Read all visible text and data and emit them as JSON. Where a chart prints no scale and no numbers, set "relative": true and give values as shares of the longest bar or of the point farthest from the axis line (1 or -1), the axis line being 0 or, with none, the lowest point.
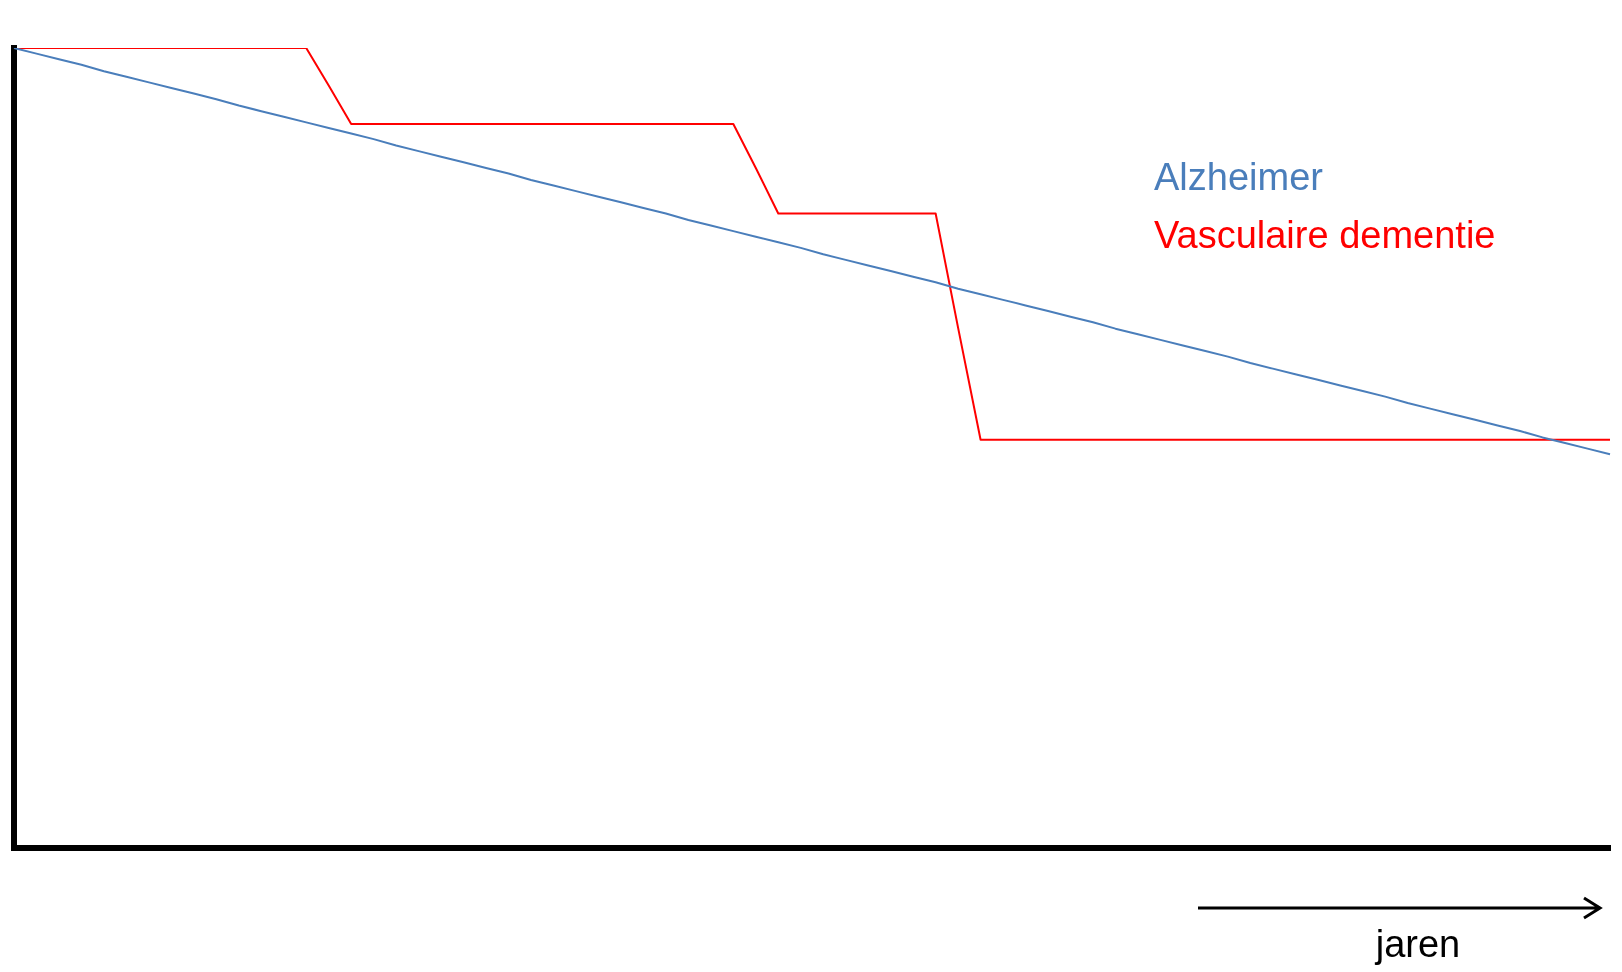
{
  "chart_data": {
    "type": "line",
    "relative": true,
    "xlabel": "jaren",
    "grid": false,
    "marker": "none",
    "categories": [
      null,
      null,
      null,
      null,
      null,
      null,
      null,
      null,
      null,
      null,
      null,
      null,
      null,
      null,
      null,
      null,
      null,
      null,
      null,
      null,
      null,
      null,
      null,
      null,
      null,
      null,
      null,
      null,
      null,
      null,
      null,
      null,
      null,
      null,
      null,
      null,
      null,
      null,
      null,
      null,
      null,
      null,
      null,
      null,
      null,
      null,
      null,
      null,
      null,
      null,
      null,
      null,
      null,
      null,
      null,
      null,
      null,
      null,
      null,
      null,
      null,
      null,
      null,
      null,
      null,
      null,
      null,
      null,
      null,
      null,
      null,
      null
    ],
    "series": [
      {
        "name": "Alzheimer",
        "color": "#4a7ebb",
        "values": [
          1,
          0.993,
          0.986,
          0.979,
          0.971,
          0.964,
          0.957,
          0.95,
          0.943,
          0.936,
          0.928,
          0.921,
          0.914,
          0.907,
          0.9,
          0.893,
          0.886,
          0.878,
          0.871,
          0.864,
          0.857,
          0.85,
          0.843,
          0.835,
          0.828,
          0.821,
          0.814,
          0.807,
          0.8,
          0.793,
          0.785,
          0.778,
          0.771,
          0.764,
          0.757,
          0.75,
          0.742,
          0.735,
          0.728,
          0.721,
          0.714,
          0.707,
          0.699,
          0.692,
          0.685,
          0.678,
          0.671,
          0.664,
          0.657,
          0.649,
          0.642,
          0.635,
          0.628,
          0.621,
          0.614,
          0.606,
          0.599,
          0.592,
          0.585,
          0.578,
          0.571,
          0.564,
          0.556,
          0.549,
          0.542,
          0.535,
          0.528,
          0.521,
          0.513,
          0.506,
          0.499,
          0.492
        ]
      },
      {
        "name": "Vasculaire dementie",
        "color": "#ff0000",
        "values": [
          1,
          1,
          1,
          1,
          1,
          1,
          1,
          1,
          1,
          1,
          1,
          1,
          1,
          1,
          0.953,
          0.905,
          0.905,
          0.905,
          0.905,
          0.905,
          0.905,
          0.905,
          0.905,
          0.905,
          0.905,
          0.905,
          0.905,
          0.905,
          0.905,
          0.905,
          0.905,
          0.905,
          0.905,
          0.85,
          0.793,
          0.793,
          0.793,
          0.793,
          0.793,
          0.793,
          0.793,
          0.793,
          0.65,
          0.51,
          0.51,
          0.51,
          0.51,
          0.51,
          0.51,
          0.51,
          0.51,
          0.51,
          0.51,
          0.51,
          0.51,
          0.51,
          0.51,
          0.51,
          0.51,
          0.51,
          0.51,
          0.51,
          0.51,
          0.51,
          0.51,
          0.51,
          0.51,
          0.51,
          0.51,
          0.51,
          0.51,
          0.51
        ]
      }
    ]
  }
}
